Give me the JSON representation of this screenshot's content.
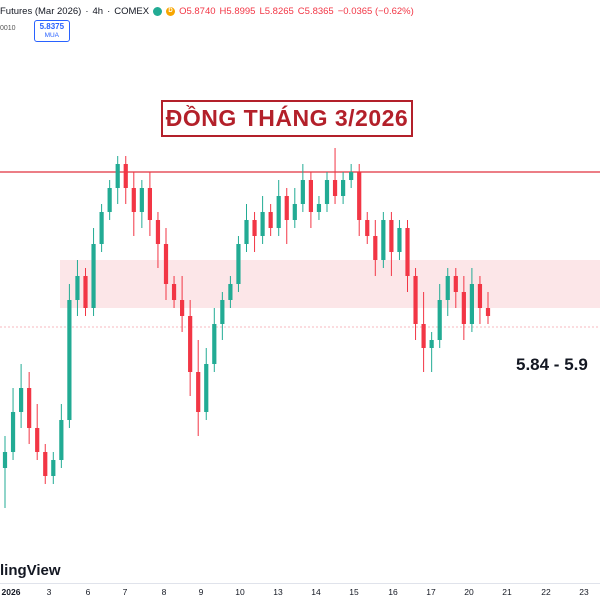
{
  "legend": {
    "symbol": "Futures (Mar 2026)",
    "interval": "4h",
    "exchange": "COMEX",
    "d_badge": "D",
    "open": "O5.8740",
    "high": "H5.8995",
    "low": "L5.8265",
    "close": "C5.8365",
    "change": "−0.0365 (−0.62%)",
    "left_value": "0010",
    "price_box_value": "5.8375",
    "price_box_sub": "MUA"
  },
  "annotation": {
    "title": "ĐỒNG THÁNG 3/2026",
    "zone_label": "5.84 - 5.9"
  },
  "watermark": "lingView",
  "colors": {
    "up": "#22ab94",
    "down": "#f23645",
    "resistance": "#e0303d",
    "zone": "#fce6e8",
    "title": "#b3202a"
  },
  "chart_data": {
    "type": "candlestick",
    "title": "ĐỒNG THÁNG 3/2026",
    "x_tick_labels": [
      "2026",
      "3",
      "6",
      "7",
      "8",
      "9",
      "10",
      "13",
      "14",
      "15",
      "16",
      "17",
      "20",
      "21",
      "22",
      "23"
    ],
    "y_range": [
      5.55,
      6.05
    ],
    "resistance_level": 6.01,
    "support_zone": [
      5.84,
      5.9
    ],
    "candles": [
      [
        5.64,
        5.66,
        5.59,
        5.68
      ],
      [
        5.66,
        5.71,
        5.65,
        5.74
      ],
      [
        5.71,
        5.74,
        5.69,
        5.77
      ],
      [
        5.74,
        5.69,
        5.67,
        5.76
      ],
      [
        5.69,
        5.66,
        5.65,
        5.72
      ],
      [
        5.66,
        5.63,
        5.62,
        5.67
      ],
      [
        5.63,
        5.65,
        5.62,
        5.66
      ],
      [
        5.65,
        5.7,
        5.64,
        5.72
      ],
      [
        5.7,
        5.85,
        5.69,
        5.87
      ],
      [
        5.85,
        5.88,
        5.83,
        5.9
      ],
      [
        5.88,
        5.84,
        5.83,
        5.89
      ],
      [
        5.84,
        5.92,
        5.83,
        5.94
      ],
      [
        5.92,
        5.96,
        5.91,
        5.97
      ],
      [
        5.96,
        5.99,
        5.95,
        6.0
      ],
      [
        5.99,
        6.02,
        5.97,
        6.03
      ],
      [
        6.02,
        5.99,
        5.97,
        6.03
      ],
      [
        5.99,
        5.96,
        5.93,
        6.01
      ],
      [
        5.96,
        5.99,
        5.94,
        6.0
      ],
      [
        5.99,
        5.95,
        5.93,
        6.01
      ],
      [
        5.95,
        5.92,
        5.89,
        5.96
      ],
      [
        5.92,
        5.87,
        5.85,
        5.94
      ],
      [
        5.87,
        5.85,
        5.84,
        5.88
      ],
      [
        5.85,
        5.83,
        5.81,
        5.88
      ],
      [
        5.83,
        5.76,
        5.73,
        5.85
      ],
      [
        5.76,
        5.71,
        5.68,
        5.8
      ],
      [
        5.71,
        5.77,
        5.7,
        5.79
      ],
      [
        5.77,
        5.82,
        5.76,
        5.84
      ],
      [
        5.82,
        5.85,
        5.8,
        5.86
      ],
      [
        5.85,
        5.87,
        5.84,
        5.88
      ],
      [
        5.87,
        5.92,
        5.86,
        5.93
      ],
      [
        5.92,
        5.95,
        5.91,
        5.97
      ],
      [
        5.95,
        5.93,
        5.91,
        5.96
      ],
      [
        5.93,
        5.96,
        5.92,
        5.98
      ],
      [
        5.96,
        5.94,
        5.93,
        5.97
      ],
      [
        5.94,
        5.98,
        5.93,
        6.0
      ],
      [
        5.98,
        5.95,
        5.92,
        5.99
      ],
      [
        5.95,
        5.97,
        5.94,
        5.99
      ],
      [
        5.97,
        6.0,
        5.96,
        6.02
      ],
      [
        6.0,
        5.96,
        5.94,
        6.01
      ],
      [
        5.96,
        5.97,
        5.95,
        5.98
      ],
      [
        5.97,
        6.0,
        5.96,
        6.01
      ],
      [
        6.0,
        5.98,
        5.97,
        6.04
      ],
      [
        5.98,
        6.0,
        5.97,
        6.01
      ],
      [
        6.0,
        6.01,
        5.99,
        6.02
      ],
      [
        6.01,
        5.95,
        5.93,
        6.02
      ],
      [
        5.95,
        5.93,
        5.92,
        5.96
      ],
      [
        5.93,
        5.9,
        5.88,
        5.95
      ],
      [
        5.9,
        5.95,
        5.89,
        5.96
      ],
      [
        5.95,
        5.91,
        5.88,
        5.96
      ],
      [
        5.91,
        5.94,
        5.9,
        5.95
      ],
      [
        5.94,
        5.88,
        5.86,
        5.95
      ],
      [
        5.88,
        5.82,
        5.8,
        5.89
      ],
      [
        5.82,
        5.79,
        5.76,
        5.86
      ],
      [
        5.79,
        5.8,
        5.76,
        5.81
      ],
      [
        5.8,
        5.85,
        5.79,
        5.87
      ],
      [
        5.85,
        5.88,
        5.83,
        5.89
      ],
      [
        5.88,
        5.86,
        5.84,
        5.89
      ],
      [
        5.86,
        5.82,
        5.8,
        5.88
      ],
      [
        5.82,
        5.87,
        5.81,
        5.89
      ],
      [
        5.87,
        5.84,
        5.82,
        5.88
      ],
      [
        5.84,
        5.83,
        5.82,
        5.86
      ]
    ]
  }
}
